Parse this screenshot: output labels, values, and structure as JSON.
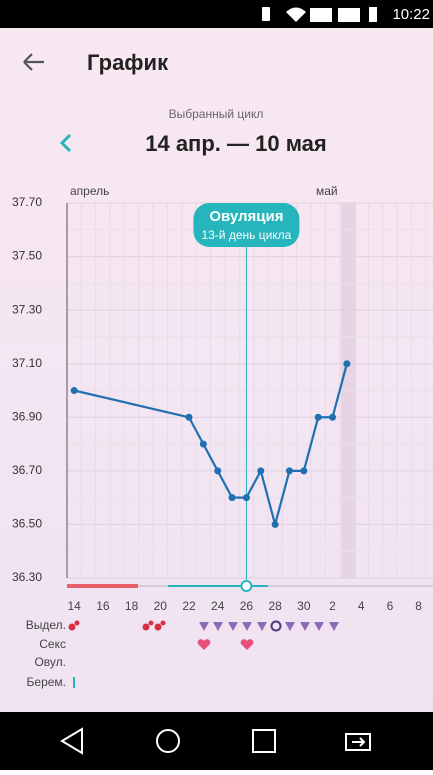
{
  "status_bar": {
    "time": "10:22"
  },
  "header": {
    "title": "График"
  },
  "cycle": {
    "label": "Выбранный цикл",
    "range": "14 апр. — 10 мая"
  },
  "chart_data": {
    "type": "line",
    "months": [
      "апрель",
      "май"
    ],
    "x": [
      1,
      9,
      10,
      11,
      12,
      13,
      14,
      15,
      16,
      17,
      18,
      19,
      20
    ],
    "series": [
      {
        "color": "#1f6fb2",
        "values": [
          37.0,
          36.9,
          36.8,
          36.7,
          36.6,
          36.6,
          36.7,
          36.5,
          36.7,
          36.7,
          36.9,
          36.9,
          37.1
        ]
      }
    ],
    "xlim": [
      0.5,
      26
    ],
    "xticks": [
      {
        "value": 1,
        "label": "14"
      },
      {
        "value": 3,
        "label": "16"
      },
      {
        "value": 5,
        "label": "18"
      },
      {
        "value": 7,
        "label": "20"
      },
      {
        "value": 9,
        "label": "22"
      },
      {
        "value": 11,
        "label": "24"
      },
      {
        "value": 13,
        "label": "26"
      },
      {
        "value": 15,
        "label": "28"
      },
      {
        "value": 17,
        "label": "30"
      },
      {
        "value": 19,
        "label": "2"
      },
      {
        "value": 21,
        "label": "4"
      },
      {
        "value": 23,
        "label": "6"
      },
      {
        "value": 25,
        "label": "8"
      }
    ],
    "ylim": [
      36.3,
      37.7
    ],
    "yticks": [
      {
        "value": 37.7,
        "label": "37.70"
      },
      {
        "value": 37.5,
        "label": "37.50"
      },
      {
        "value": 37.3,
        "label": "37.30"
      },
      {
        "value": 37.1,
        "label": "37.10"
      },
      {
        "value": 36.9,
        "label": "36.90"
      },
      {
        "value": 36.7,
        "label": "36.70"
      },
      {
        "value": 36.5,
        "label": "36.50"
      },
      {
        "value": 36.3,
        "label": "36.30"
      }
    ],
    "grid": true,
    "annotation": {
      "x": 13,
      "title": "Овуляция",
      "subtitle": "13-й день цикла"
    }
  },
  "rows": [
    "Выдел.",
    "Секс",
    "Овул.",
    "Берем."
  ]
}
